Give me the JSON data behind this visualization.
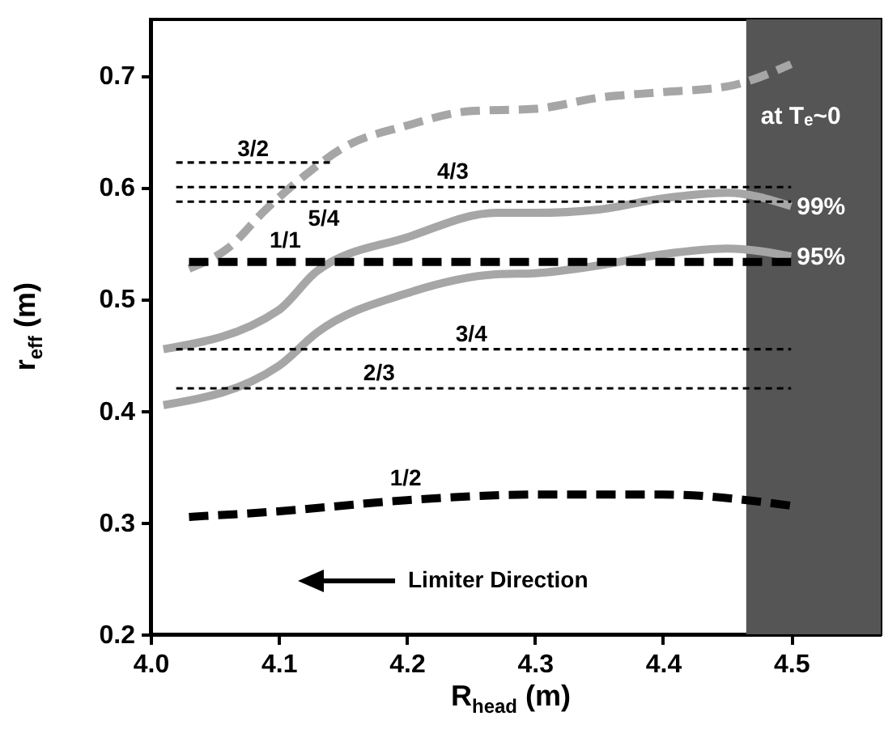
{
  "chart_data": {
    "type": "line",
    "xlabel": "R$_{head}$ (m)",
    "ylabel": "r$_{eff}$ (m)",
    "xlim": [
      4.0,
      4.57
    ],
    "ylim": [
      0.2,
      0.75
    ],
    "xticks": [
      {
        "value": 4.0,
        "label": "4.0"
      },
      4.1,
      4.2,
      4.3,
      4.4,
      4.5
    ],
    "yticks": [
      0.2,
      0.3,
      0.4,
      0.5,
      0.6,
      0.7
    ],
    "grid": false,
    "bands": [
      {
        "axis": "x",
        "from": 4.465,
        "to": 4.57,
        "color": "#555555"
      }
    ],
    "series": [
      {
        "name": "at Tₑ~0",
        "color": "#a6a6a6",
        "line_style": "dashed",
        "x": [
          4.03,
          4.06,
          4.09,
          4.12,
          4.15,
          4.2,
          4.25,
          4.3,
          4.35,
          4.4,
          4.45,
          4.5
        ],
        "values": [
          0.527,
          0.545,
          0.58,
          0.61,
          0.635,
          0.655,
          0.668,
          0.67,
          0.68,
          0.685,
          0.69,
          0.71
        ]
      },
      {
        "name": "99%",
        "color": "#a6a6a6",
        "line_style": "solid",
        "x": [
          4.01,
          4.1,
          4.13,
          4.2,
          4.27,
          4.3,
          4.35,
          4.4,
          4.45,
          4.5
        ],
        "values": [
          0.455,
          0.49,
          0.525,
          0.555,
          0.577,
          0.577,
          0.58,
          0.59,
          0.595,
          0.583
        ]
      },
      {
        "name": "95%",
        "color": "#a6a6a6",
        "line_style": "solid",
        "x": [
          4.01,
          4.1,
          4.13,
          4.2,
          4.27,
          4.3,
          4.35,
          4.4,
          4.45,
          4.5
        ],
        "values": [
          0.405,
          0.44,
          0.47,
          0.505,
          0.522,
          0.523,
          0.53,
          0.54,
          0.545,
          0.538
        ]
      },
      {
        "name": "3/2",
        "color": "#000000",
        "line_style": "dotted",
        "x": [
          4.02,
          4.14
        ],
        "values": [
          0.622,
          0.622
        ]
      },
      {
        "name": "4/3",
        "color": "#000000",
        "line_style": "dotted",
        "x": [
          4.02,
          4.5
        ],
        "values": [
          0.6,
          0.6
        ]
      },
      {
        "name": "5/4",
        "color": "#000000",
        "line_style": "dotted",
        "x": [
          4.02,
          4.5
        ],
        "values": [
          0.587,
          0.587
        ]
      },
      {
        "name": "1/1",
        "color": "#000000",
        "line_style": "dashed",
        "x": [
          4.03,
          4.5
        ],
        "values": [
          0.533,
          0.533
        ]
      },
      {
        "name": "3/4",
        "color": "#000000",
        "line_style": "dotted",
        "x": [
          4.02,
          4.5
        ],
        "values": [
          0.455,
          0.455
        ]
      },
      {
        "name": "2/3",
        "color": "#000000",
        "line_style": "dotted",
        "x": [
          4.02,
          4.5
        ],
        "values": [
          0.42,
          0.42
        ]
      },
      {
        "name": "1/2",
        "color": "#000000",
        "line_style": "dashed",
        "x": [
          4.03,
          4.1,
          4.2,
          4.3,
          4.4,
          4.5
        ],
        "values": [
          0.305,
          0.31,
          0.32,
          0.325,
          0.325,
          0.315
        ]
      }
    ],
    "annotations": [
      "Limiter Direction"
    ]
  }
}
